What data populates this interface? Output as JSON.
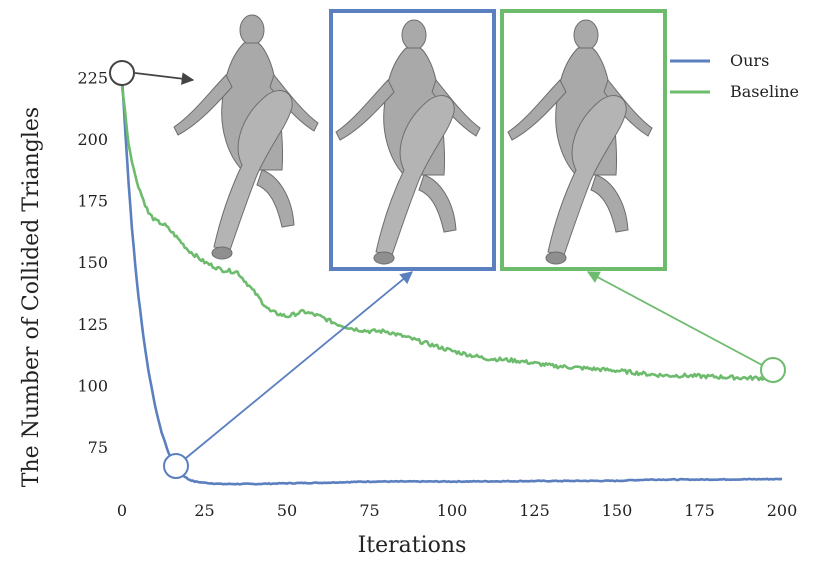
{
  "chart_data": {
    "type": "line",
    "xlabel": "Iterations",
    "ylabel": "The Number of Collided Triangles",
    "xlim": [
      0,
      200
    ],
    "ylim": [
      60,
      228
    ],
    "xticks": [
      "0",
      "25",
      "50",
      "75",
      "100",
      "125",
      "150",
      "175",
      "200"
    ],
    "yticks": [
      "75",
      "100",
      "125",
      "150",
      "175",
      "200",
      "225"
    ],
    "grid": false,
    "legend_position": "top-right",
    "series": [
      {
        "name": "Ours",
        "color": "#5b7fbf",
        "x": [
          0,
          1,
          2,
          3,
          4,
          5,
          6,
          7,
          8,
          9,
          10,
          11,
          12,
          13,
          14,
          15,
          16,
          17,
          18,
          19,
          20,
          22,
          25,
          30,
          40,
          50,
          60,
          75,
          100,
          125,
          150,
          160,
          175,
          200
        ],
        "y": [
          225,
          203,
          182,
          164,
          149,
          136,
          125,
          115,
          106,
          99,
          92,
          86,
          81,
          77,
          73,
          70,
          68,
          66,
          64,
          63,
          62,
          61,
          60.5,
          60,
          60,
          60.3,
          60.5,
          61,
          61,
          61.2,
          61.3,
          61.8,
          61.8,
          62
        ]
      },
      {
        "name": "Baseline",
        "color": "#6dbb6d",
        "x": [
          0,
          2,
          4,
          6,
          8,
          10,
          13,
          16,
          20,
          25,
          30,
          35,
          40,
          43,
          45,
          50,
          55,
          60,
          65,
          70,
          75,
          80,
          90,
          100,
          110,
          120,
          125,
          130,
          140,
          150,
          160,
          165,
          170,
          180,
          190,
          200
        ],
        "y": [
          222,
          198,
          185,
          177,
          170,
          167,
          165,
          161,
          155,
          150,
          147,
          146,
          138,
          133,
          130,
          128,
          130,
          128,
          125,
          123,
          122,
          122,
          118,
          114,
          111,
          110,
          109,
          108,
          107,
          106,
          104.5,
          104,
          104,
          103.5,
          103,
          103
        ]
      }
    ]
  }
}
